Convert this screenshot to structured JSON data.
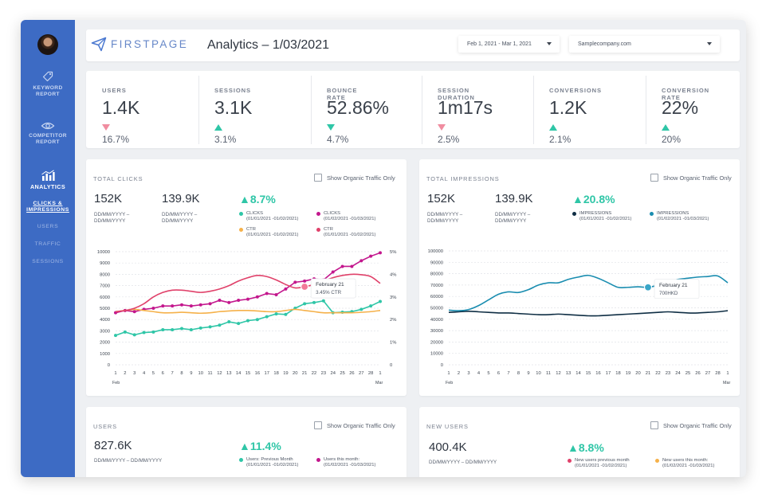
{
  "header": {
    "logo_text": "FIRSTPAGE",
    "title": "Analytics – 1/03/2021",
    "date_range": "Feb 1, 2021 - Mar 1, 2021",
    "site": "Samplecompany.com"
  },
  "sidebar": {
    "items": [
      {
        "label": "KEYWORD REPORT",
        "icon": "tag-icon"
      },
      {
        "label": "COMPETITOR REPORT",
        "icon": "eye-icon"
      },
      {
        "label": "ANALYTICS",
        "icon": "bar-chart-icon",
        "active": true
      }
    ],
    "subitems": [
      "CLICKS & IMPRESSIONS",
      "USERS",
      "TRAFFIC",
      "SESSIONS"
    ]
  },
  "stats": [
    {
      "label": "USERS",
      "value": "1.4K",
      "change": "16.7%",
      "direction": "down",
      "color": "#f08da0"
    },
    {
      "label": "SESSIONS",
      "value": "3.1K",
      "change": "3.1%",
      "direction": "up",
      "color": "#2fc6a7"
    },
    {
      "label": "BOUNCE RATE",
      "value": "52.86%",
      "change": "4.7%",
      "direction": "down",
      "color": "#2fc6a7"
    },
    {
      "label": "SESSION DURATION",
      "value": "1m17s",
      "change": "2.5%",
      "direction": "down",
      "color": "#f08da0"
    },
    {
      "label": "CONVERSIONS",
      "value": "1.2K",
      "change": "2.1%",
      "direction": "up",
      "color": "#2fc6a7"
    },
    {
      "label": "CONVERSION RATE",
      "value": "22%",
      "change": "20%",
      "direction": "up",
      "color": "#2fc6a7"
    }
  ],
  "clicks_panel": {
    "title": "TOTAL CLICKS",
    "checkbox_label": "Show Organic Traffic Only",
    "value1": "152K",
    "value2": "139.9K",
    "pct": "▲8.7%",
    "range1": "DD/MM/YYYY –\nDD/MM/YYYY",
    "range2": "DD/MM/YYYY –\nDD/MM/YYYY",
    "legend": [
      {
        "label": "CLICKS\n(01/01/2021 -01/02/2021)",
        "color": "#2fc6a7"
      },
      {
        "label": "CLICKS\n(01/02/2021 -01/03/2021)",
        "color": "#c3178d"
      },
      {
        "label": "CTR\n(01/01/2021 -01/02/2021)",
        "color": "#f5b14a"
      },
      {
        "label": "CTR\n(01/01/2021 -01/02/2021)",
        "color": "#e0416a"
      }
    ],
    "tooltip": {
      "title": "February 21",
      "value": "3.45% CTR"
    }
  },
  "impressions_panel": {
    "title": "TOTAL IMPRESSIONS",
    "checkbox_label": "Show Organic Traffic Only",
    "value1": "152K",
    "value2": "139.9K",
    "pct": "▲20.8%",
    "range1": "DD/MM/YYYY –\nDD/MM/YYYY",
    "range2": "DD/MM/YYYY –\nDD/MM/YYYY",
    "legend": [
      {
        "label": "IMPRESSIONS\n(01/01/2021 -01/02/2021)",
        "color": "#0f2e44"
      },
      {
        "label": "IMPRESSIONS\n(01/02/2021 -01/03/2021)",
        "color": "#1a8db0"
      }
    ],
    "tooltip": {
      "title": "February 21",
      "value": "700HKD"
    }
  },
  "users_panel": {
    "title": "USERS",
    "checkbox_label": "Show Organic Traffic Only",
    "value": "827.6K",
    "pct": "▲11.4%",
    "range": "DD/MM/YYYY – DD/MM/YYYY",
    "legend": [
      {
        "label": "Users: Previous Month\n(01/01/2021 -01/02/2021)",
        "color": "#2fc6a7"
      },
      {
        "label": "Users this month:\n(01/02/2021 -01/03/2021)",
        "color": "#c3178d"
      }
    ]
  },
  "newusers_panel": {
    "title": "NEW USERS",
    "checkbox_label": "Show Organic Traffic Only",
    "value": "400.4K",
    "pct": "▲8.8%",
    "range": "DD/MM/YYYY – DD/MM/YYYY",
    "legend": [
      {
        "label": "New users previous month\n(01/01/2021 -01/02/2021)",
        "color": "#e0416a"
      },
      {
        "label": "New users this month:\n(01/02/2021 -01/03/2021)",
        "color": "#f5b14a"
      }
    ]
  },
  "chart_data": [
    {
      "type": "line",
      "title": "TOTAL CLICKS",
      "x": [
        "1",
        "2",
        "3",
        "4",
        "5",
        "6",
        "7",
        "8",
        "9",
        "10",
        "11",
        "12",
        "13",
        "14",
        "15",
        "16",
        "17",
        "18",
        "19",
        "20",
        "21",
        "22",
        "23",
        "24",
        "25",
        "26",
        "27",
        "28",
        "1"
      ],
      "x_group_labels": [
        "Feb",
        "Mar"
      ],
      "ylim": [
        0,
        10000
      ],
      "yticks": [
        "0",
        "1000",
        "2000",
        "3000",
        "4000",
        "5000",
        "6000",
        "7000",
        "8000",
        "9000",
        "10000"
      ],
      "y2lim": [
        0,
        5
      ],
      "y2ticks": [
        "0",
        "1%",
        "2%",
        "3%",
        "4%",
        "5%"
      ],
      "series": [
        {
          "color": "#2fc6a7",
          "axis": "left",
          "values": [
            2600,
            2900,
            2650,
            2850,
            2900,
            3100,
            3100,
            3200,
            3100,
            3250,
            3350,
            3500,
            3800,
            3650,
            3900,
            4000,
            4250,
            4500,
            4450,
            5000,
            5400,
            5500,
            5650,
            4600,
            4650,
            4700,
            4900,
            5200,
            5600
          ]
        },
        {
          "color": "#c3178d",
          "axis": "left",
          "values": [
            4600,
            4800,
            4700,
            4900,
            5000,
            5200,
            5200,
            5300,
            5200,
            5300,
            5400,
            5700,
            5500,
            5700,
            5800,
            6000,
            6300,
            6200,
            6700,
            7300,
            7400,
            7600,
            7500,
            8200,
            8700,
            8700,
            9200,
            9600,
            9900
          ]
        },
        {
          "color": "#f5b14a",
          "axis": "right",
          "smooth": true,
          "values": [
            2.35,
            2.4,
            2.45,
            2.4,
            2.35,
            2.3,
            2.3,
            2.32,
            2.3,
            2.28,
            2.3,
            2.35,
            2.38,
            2.4,
            2.4,
            2.38,
            2.35,
            2.35,
            2.4,
            2.45,
            2.4,
            2.35,
            2.3,
            2.3,
            2.3,
            2.3,
            2.32,
            2.35,
            2.4
          ]
        },
        {
          "color": "#e0416a",
          "axis": "right",
          "smooth": true,
          "values": [
            2.35,
            2.4,
            2.5,
            2.7,
            3.0,
            3.2,
            3.3,
            3.3,
            3.25,
            3.2,
            3.25,
            3.35,
            3.5,
            3.7,
            3.85,
            3.95,
            3.9,
            3.75,
            3.55,
            3.4,
            3.45,
            3.55,
            3.7,
            3.85,
            3.95,
            4.0,
            3.98,
            3.9,
            3.6
          ]
        }
      ],
      "tooltip_index": 20
    },
    {
      "type": "line",
      "title": "TOTAL IMPRESSIONS",
      "x": [
        "1",
        "2",
        "3",
        "4",
        "5",
        "6",
        "7",
        "8",
        "9",
        "10",
        "11",
        "12",
        "13",
        "14",
        "15",
        "16",
        "17",
        "18",
        "19",
        "20",
        "21",
        "22",
        "23",
        "24",
        "25",
        "26",
        "27",
        "28",
        "1"
      ],
      "x_group_labels": [
        "Feb",
        "Mar"
      ],
      "ylim": [
        0,
        100000
      ],
      "yticks": [
        "0",
        "10000",
        "20000",
        "30000",
        "40000",
        "50000",
        "60000",
        "70000",
        "80000",
        "90000",
        "100000"
      ],
      "series": [
        {
          "color": "#0f2e44",
          "smooth": true,
          "values": [
            46000,
            46500,
            47000,
            46500,
            46000,
            45500,
            45500,
            45000,
            44500,
            44000,
            44000,
            44500,
            44000,
            43500,
            43000,
            43000,
            43500,
            44000,
            44500,
            45000,
            45500,
            46000,
            46500,
            46000,
            45500,
            45500,
            46000,
            46500,
            47500
          ]
        },
        {
          "color": "#1a8db0",
          "smooth": true,
          "values": [
            48000,
            47500,
            48500,
            52000,
            57000,
            62000,
            64000,
            63500,
            66000,
            70000,
            72000,
            72000,
            75000,
            77000,
            78500,
            76000,
            72000,
            68000,
            68000,
            68500,
            68000,
            70000,
            73000,
            75000,
            76000,
            77000,
            77500,
            78000,
            72000
          ]
        }
      ],
      "tooltip_index": 20
    }
  ]
}
